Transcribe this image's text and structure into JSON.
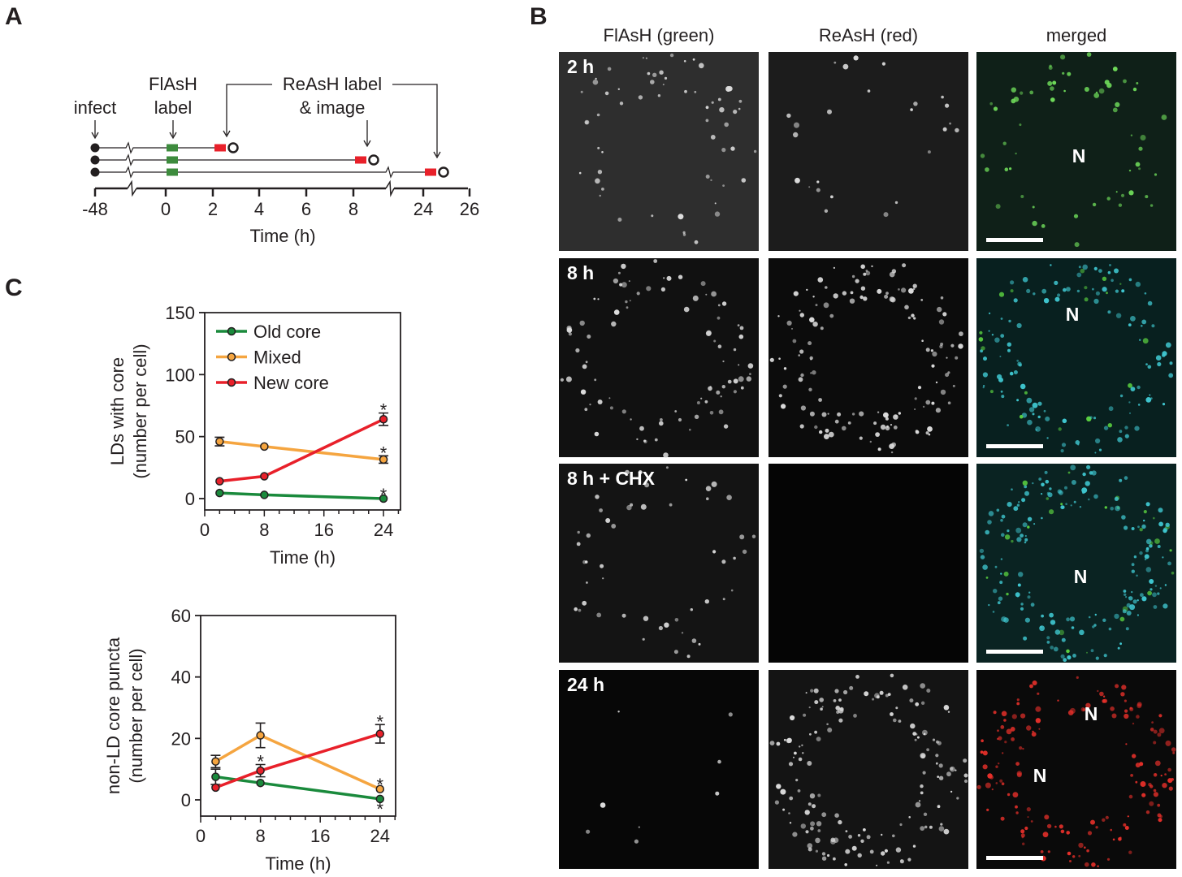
{
  "panels": {
    "a": "A",
    "b": "B",
    "c": "C"
  },
  "panel_a": {
    "annotations": {
      "infect": "infect",
      "flash_line1": "FlAsH",
      "flash_line2": "label",
      "reash_line1": "ReAsH label",
      "reash_line2": "& image"
    },
    "ticks": [
      "-48",
      "0",
      "2",
      "4",
      "6",
      "8",
      "24",
      "26"
    ],
    "xlabel": "Time (h)",
    "colors": {
      "flash": "#3d8b3d",
      "reash": "#e8202a"
    }
  },
  "panel_b": {
    "columns": [
      "FlAsH (green)",
      "ReAsH (red)",
      "merged"
    ],
    "rows": [
      "2 h",
      "8 h",
      "8 h + CHX",
      "24 h"
    ],
    "nucleus_label": "N"
  },
  "chart_data": [
    {
      "type": "line",
      "x": [
        2,
        8,
        24
      ],
      "xlabel": "Time (h)",
      "ylabel": "LDs with core (number per cell)",
      "ylabel_line1": "LDs with core",
      "ylabel_line2": "(number per cell)",
      "xlim": [
        0,
        26
      ],
      "ylim": [
        -10,
        150
      ],
      "xticks": [
        "0",
        "8",
        "16",
        "24"
      ],
      "yticks": [
        "0",
        "50",
        "100",
        "150"
      ],
      "legend": "top-left",
      "series": [
        {
          "name": "Old core",
          "color": "#1a8a3c",
          "values": [
            4.5,
            3,
            0
          ],
          "errors": [
            1,
            1,
            0.5
          ],
          "significant": [
            false,
            false,
            true
          ]
        },
        {
          "name": "Mixed",
          "color": "#f5a540",
          "values": [
            46,
            42,
            31.5
          ],
          "errors": [
            3.5,
            1,
            3
          ],
          "significant": [
            false,
            false,
            true
          ]
        },
        {
          "name": "New core",
          "color": "#e8202a",
          "values": [
            14,
            18,
            64
          ],
          "errors": [
            1,
            1,
            5
          ],
          "significant": [
            false,
            false,
            true
          ]
        }
      ],
      "significance_mark": "*"
    },
    {
      "type": "line",
      "x": [
        2,
        8,
        24
      ],
      "xlabel": "Time (h)",
      "ylabel": "non-LD core puncta (number per cell)",
      "ylabel_line1": "non-LD core puncta",
      "ylabel_line2": "(number per cell)",
      "xlim": [
        0,
        26
      ],
      "ylim": [
        -4,
        60
      ],
      "xticks": [
        "0",
        "8",
        "16",
        "24"
      ],
      "yticks": [
        "0",
        "20",
        "40",
        "60"
      ],
      "series": [
        {
          "name": "Old core",
          "color": "#1a8a3c",
          "values": [
            7.5,
            5.5,
            0.3
          ],
          "errors": [
            2.5,
            0.5,
            0.3
          ],
          "significant": [
            false,
            false,
            true
          ]
        },
        {
          "name": "Mixed",
          "color": "#f5a540",
          "values": [
            12.5,
            21,
            3.5
          ],
          "errors": [
            2,
            4,
            0.5
          ],
          "significant": [
            false,
            false,
            true
          ]
        },
        {
          "name": "New core",
          "color": "#e8202a",
          "values": [
            4,
            9.5,
            21.5
          ],
          "errors": [
            1,
            2,
            3
          ],
          "significant": [
            false,
            true,
            true
          ]
        }
      ],
      "significance_mark": "*"
    }
  ]
}
